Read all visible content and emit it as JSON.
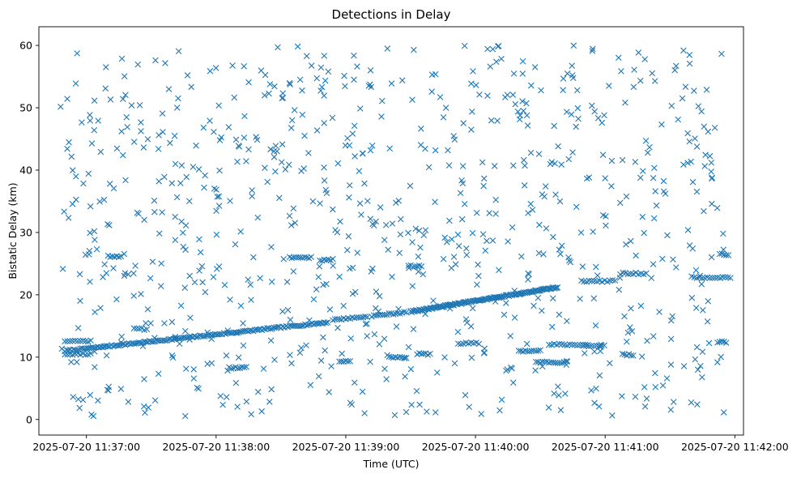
{
  "colors": {
    "marker": "#1f77b4",
    "axis": "#000000",
    "background": "#ffffff"
  },
  "chart_data": {
    "type": "scatter",
    "marker": "x",
    "title": "Detections in Delay",
    "xlabel": "Time (UTC)",
    "ylabel": "Bistatic Delay (km)",
    "xlim_seconds": [
      -22,
      304
    ],
    "ylim": [
      -2.5,
      63
    ],
    "x_ticks": [
      {
        "seconds": 0,
        "label": "2025-07-20 11:37:00"
      },
      {
        "seconds": 60,
        "label": "2025-07-20 11:38:00"
      },
      {
        "seconds": 120,
        "label": "2025-07-20 11:39:00"
      },
      {
        "seconds": 180,
        "label": "2025-07-20 11:40:00"
      },
      {
        "seconds": 240,
        "label": "2025-07-20 11:41:00"
      },
      {
        "seconds": 300,
        "label": "2025-07-20 11:42:00"
      }
    ],
    "y_ticks": [
      {
        "value": 0,
        "label": "0"
      },
      {
        "value": 10,
        "label": "10"
      },
      {
        "value": 20,
        "label": "20"
      },
      {
        "value": 30,
        "label": "30"
      },
      {
        "value": 40,
        "label": "40"
      },
      {
        "value": 50,
        "label": "50"
      },
      {
        "value": 60,
        "label": "60"
      }
    ],
    "x_start_time": "2025-07-20 11:37:00",
    "x_end_time": "2025-07-20 11:41:45",
    "series": [
      {
        "name": "Main target track",
        "description": "dense near-linear track of detections",
        "segments": [
          {
            "x_start": -10,
            "x_end": 112,
            "y_start": 11.0,
            "y_end": 15.6,
            "step_seconds": 0.8
          },
          {
            "x_start": 114,
            "x_end": 130,
            "y_start": 16.0,
            "y_end": 16.5,
            "step_seconds": 1.0
          },
          {
            "x_start": 132,
            "x_end": 148,
            "y_start": 16.6,
            "y_end": 17.2,
            "step_seconds": 1.0
          },
          {
            "x_start": 150,
            "x_end": 218,
            "y_start": 17.3,
            "y_end": 21.2,
            "step_seconds": 0.5
          }
        ]
      },
      {
        "name": "Short horizontal clusters",
        "description": "short bursts of detections at nearly constant delay",
        "clusters": [
          {
            "x": -10,
            "y": 10.5,
            "length_seconds": 12,
            "step_seconds": 1.2
          },
          {
            "x": -10,
            "y": 12.6,
            "length_seconds": 12,
            "step_seconds": 1.2
          },
          {
            "x": 10,
            "y": 26.2,
            "length_seconds": 6,
            "step_seconds": 1.0
          },
          {
            "x": 22,
            "y": 14.5,
            "length_seconds": 6,
            "step_seconds": 1.2
          },
          {
            "x": 66,
            "y": 8.3,
            "length_seconds": 8,
            "step_seconds": 1.0
          },
          {
            "x": 94,
            "y": 26.0,
            "length_seconds": 10,
            "step_seconds": 1.0
          },
          {
            "x": 108,
            "y": 25.6,
            "length_seconds": 6,
            "step_seconds": 1.0
          },
          {
            "x": 117,
            "y": 9.4,
            "length_seconds": 5,
            "step_seconds": 1.0
          },
          {
            "x": 140,
            "y": 10.0,
            "length_seconds": 8,
            "step_seconds": 1.0
          },
          {
            "x": 149,
            "y": 24.6,
            "length_seconds": 6,
            "step_seconds": 1.0
          },
          {
            "x": 153,
            "y": 10.5,
            "length_seconds": 6,
            "step_seconds": 1.0
          },
          {
            "x": 172,
            "y": 12.2,
            "length_seconds": 10,
            "step_seconds": 1.2
          },
          {
            "x": 200,
            "y": 11.0,
            "length_seconds": 10,
            "step_seconds": 1.0
          },
          {
            "x": 208,
            "y": 9.2,
            "length_seconds": 14,
            "step_seconds": 1.0
          },
          {
            "x": 214,
            "y": 12.0,
            "length_seconds": 18,
            "step_seconds": 1.2
          },
          {
            "x": 230,
            "y": 11.8,
            "length_seconds": 10,
            "step_seconds": 1.2
          },
          {
            "x": 229,
            "y": 22.2,
            "length_seconds": 16,
            "step_seconds": 1.2
          },
          {
            "x": 247,
            "y": 23.4,
            "length_seconds": 12,
            "step_seconds": 1.2
          },
          {
            "x": 248,
            "y": 10.4,
            "length_seconds": 5,
            "step_seconds": 1.0
          },
          {
            "x": 280,
            "y": 22.8,
            "length_seconds": 18,
            "step_seconds": 1.2
          },
          {
            "x": 292,
            "y": 12.4,
            "length_seconds": 4,
            "step_seconds": 1.0
          },
          {
            "x": 293,
            "y": 26.5,
            "length_seconds": 4,
            "step_seconds": 1.0
          }
        ]
      },
      {
        "name": "Scattered clutter detections",
        "description": "detections uniformly spread over the plotted range",
        "scatter": {
          "count": 820,
          "x_range": [
            -12,
            295
          ],
          "y_range": [
            0.5,
            60.0
          ],
          "seed": 20250720
        }
      }
    ]
  }
}
